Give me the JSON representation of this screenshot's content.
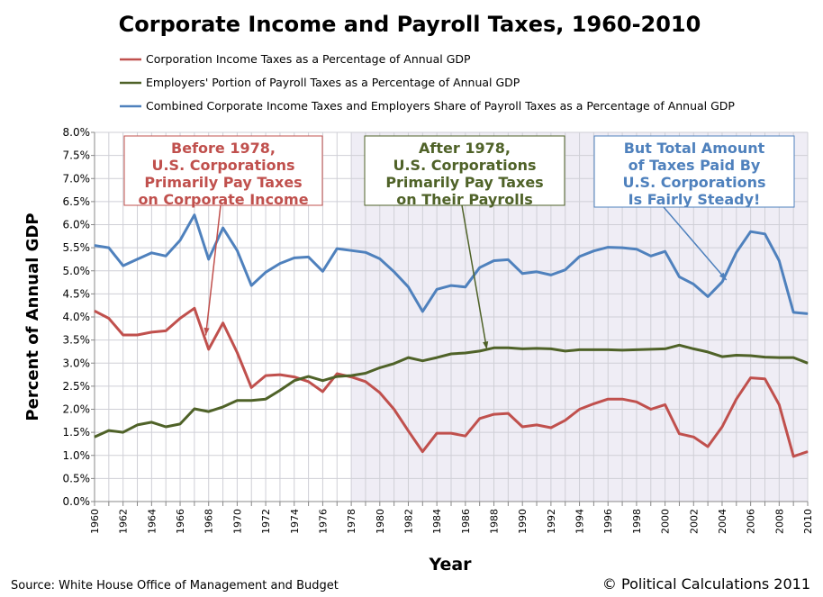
{
  "chart_data": {
    "type": "line",
    "title": "Corporate Income and Payroll Taxes, 1960-2010",
    "xlabel": "Year",
    "ylabel": "Percent of Annual GDP",
    "xlim": [
      1960,
      2010
    ],
    "ylim": [
      0,
      8
    ],
    "grid": true,
    "legend_position": "top-left",
    "x_ticks": [
      "1960",
      "1962",
      "1964",
      "1966",
      "1968",
      "1970",
      "1972",
      "1974",
      "1976",
      "1978",
      "1980",
      "1982",
      "1984",
      "1986",
      "1988",
      "1990",
      "1992",
      "1994",
      "1996",
      "1998",
      "2000",
      "2002",
      "2004",
      "2006",
      "2008",
      "2010"
    ],
    "y_ticks": [
      "0.0%",
      "0.5%",
      "1.0%",
      "1.5%",
      "2.0%",
      "2.5%",
      "3.0%",
      "3.5%",
      "4.0%",
      "4.5%",
      "5.0%",
      "5.5%",
      "6.0%",
      "6.5%",
      "7.0%",
      "7.5%",
      "8.0%"
    ],
    "shaded_from_year": 1978,
    "x": [
      1960,
      1961,
      1962,
      1963,
      1964,
      1965,
      1966,
      1967,
      1968,
      1969,
      1970,
      1971,
      1972,
      1973,
      1974,
      1975,
      1976,
      1977,
      1978,
      1979,
      1980,
      1981,
      1982,
      1983,
      1984,
      1985,
      1986,
      1987,
      1988,
      1989,
      1990,
      1991,
      1992,
      1993,
      1994,
      1995,
      1996,
      1997,
      1998,
      1999,
      2000,
      2001,
      2002,
      2003,
      2004,
      2005,
      2006,
      2007,
      2008,
      2009,
      2010
    ],
    "series": [
      {
        "name": "Corporation Income Taxes as a Percentage of Annual GDP",
        "color": "#c0504d",
        "values": [
          4.13,
          3.97,
          3.61,
          3.61,
          3.67,
          3.7,
          3.97,
          4.19,
          3.3,
          3.87,
          3.23,
          2.47,
          2.73,
          2.75,
          2.7,
          2.6,
          2.38,
          2.77,
          2.7,
          2.6,
          2.36,
          2.0,
          1.53,
          1.08,
          1.48,
          1.48,
          1.42,
          1.8,
          1.89,
          1.91,
          1.62,
          1.66,
          1.6,
          1.76,
          2.0,
          2.12,
          2.22,
          2.22,
          2.16,
          2.0,
          2.1,
          1.47,
          1.4,
          1.19,
          1.62,
          2.22,
          2.68,
          2.66,
          2.1,
          0.98,
          1.08
        ]
      },
      {
        "name": "Employers' Portion of Payroll Taxes as a Percentage of Annual GDP",
        "color": "#4f6228",
        "values": [
          1.4,
          1.54,
          1.5,
          1.66,
          1.72,
          1.62,
          1.68,
          2.01,
          1.95,
          2.05,
          2.19,
          2.19,
          2.22,
          2.41,
          2.62,
          2.71,
          2.62,
          2.71,
          2.73,
          2.78,
          2.9,
          2.99,
          3.12,
          3.05,
          3.12,
          3.2,
          3.22,
          3.26,
          3.33,
          3.33,
          3.31,
          3.32,
          3.31,
          3.26,
          3.29,
          3.29,
          3.29,
          3.28,
          3.29,
          3.3,
          3.31,
          3.39,
          3.31,
          3.24,
          3.14,
          3.17,
          3.16,
          3.13,
          3.12,
          3.12,
          3.0
        ]
      },
      {
        "name": "Combined Corporate Income Taxes and Employers Share of Payroll Taxes as a Percentage of Annual GDP",
        "color": "#4f81bd",
        "values": [
          5.55,
          5.5,
          5.11,
          5.25,
          5.39,
          5.32,
          5.66,
          6.21,
          5.25,
          5.93,
          5.44,
          4.68,
          4.97,
          5.16,
          5.28,
          5.3,
          4.99,
          5.48,
          5.44,
          5.4,
          5.26,
          4.98,
          4.65,
          4.12,
          4.6,
          4.68,
          4.65,
          5.07,
          5.22,
          5.24,
          4.94,
          4.98,
          4.91,
          5.02,
          5.31,
          5.43,
          5.51,
          5.5,
          5.47,
          5.32,
          5.42,
          4.87,
          4.71,
          4.44,
          4.76,
          5.4,
          5.85,
          5.8,
          5.22,
          4.1,
          4.07
        ]
      }
    ],
    "annotations": [
      {
        "lines": [
          "Before 1978,",
          "U.S. Corporations",
          "Primarily Pay Taxes",
          "on Corporate Income"
        ],
        "color": "#c0504d",
        "arrow_to": [
          1967.8,
          3.6
        ]
      },
      {
        "lines": [
          "After 1978,",
          "U.S. Corporations",
          "Primarily Pay Taxes",
          "on Their Payrolls"
        ],
        "color": "#4f6228",
        "arrow_to": [
          1987.5,
          3.3
        ]
      },
      {
        "lines": [
          "But Total Amount",
          "of Taxes Paid By",
          "U.S. Corporations",
          "Is Fairly Steady!"
        ],
        "color": "#4f81bd",
        "arrow_to": [
          2004.3,
          4.8
        ]
      }
    ]
  },
  "footer": {
    "source": "Source: White House Office of Management and Budget",
    "copyright": "© Political Calculations 2011"
  }
}
